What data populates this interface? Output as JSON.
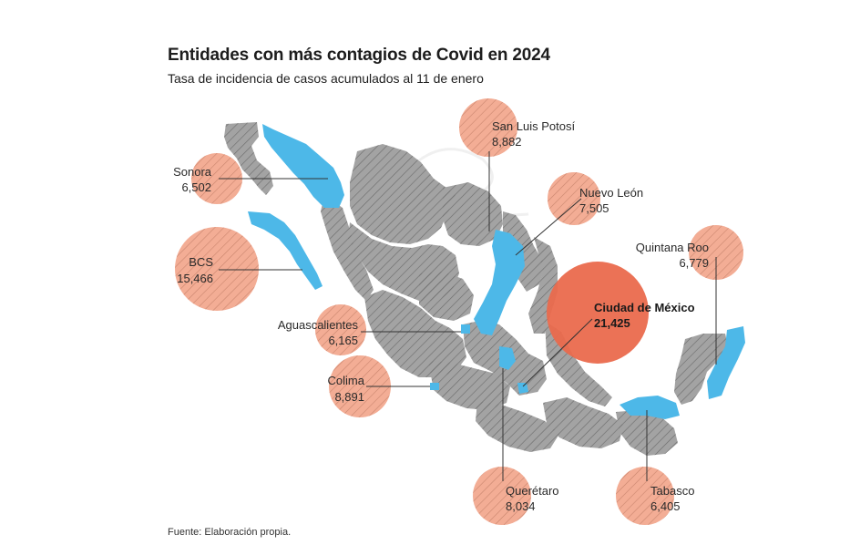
{
  "header": {
    "title": "Entidades con más contagios de Covid en 2024",
    "subtitle": "Tasa de incidencia de casos acumulados al 11 de enero"
  },
  "footer": {
    "source": "Fuente: Elaboración propia."
  },
  "colors": {
    "land": "#a3a3a3",
    "highlight": "#4db8e8",
    "bubble": "#f2a48a",
    "bubble_max": "#ea6a4d",
    "hatch": "#7a7a7a"
  },
  "entities": [
    {
      "name": "Sonora",
      "value": "6,502",
      "rate": 6502
    },
    {
      "name": "BCS",
      "value": "15,466",
      "rate": 15466
    },
    {
      "name": "Aguascalientes",
      "value": "6,165",
      "rate": 6165
    },
    {
      "name": "Colima",
      "value": "8,891",
      "rate": 8891
    },
    {
      "name": "San Luis Potosí",
      "value": "8,882",
      "rate": 8882
    },
    {
      "name": "Nuevo León",
      "value": "7,505",
      "rate": 7505
    },
    {
      "name": "Quintana Roo",
      "value": "6,779",
      "rate": 6779
    },
    {
      "name": "Ciudad de México",
      "value": "21,425",
      "rate": 21425
    },
    {
      "name": "Querétaro",
      "value": "8,034",
      "rate": 8034
    },
    {
      "name": "Tabasco",
      "value": "6,405",
      "rate": 6405
    }
  ]
}
